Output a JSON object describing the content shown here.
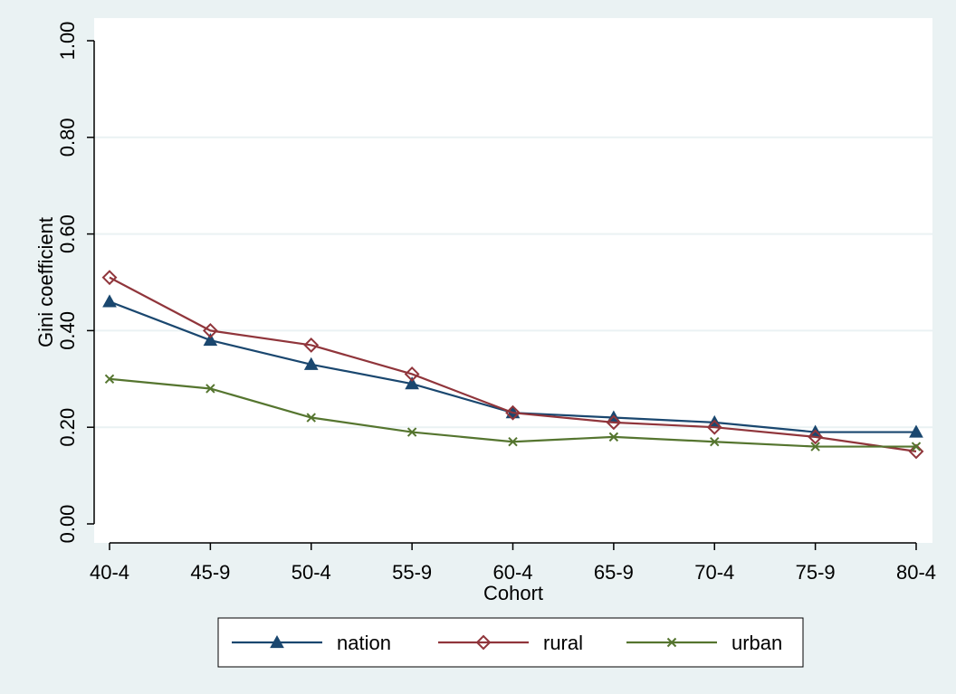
{
  "chart_data": {
    "type": "line",
    "title": "",
    "xlabel": "Cohort",
    "ylabel": "Gini coefficient",
    "categories": [
      "40-4",
      "45-9",
      "50-4",
      "55-9",
      "60-4",
      "65-9",
      "70-4",
      "75-9",
      "80-4"
    ],
    "ylim": [
      0,
      1
    ],
    "yticks": [
      0,
      0.2,
      0.4,
      0.6,
      0.8,
      1.0
    ],
    "ytick_labels": [
      "0.00",
      "0.20",
      "0.40",
      "0.60",
      "0.80",
      "1.00"
    ],
    "grid": true,
    "legend_position": "bottom",
    "series": [
      {
        "name": "nation",
        "color": "#1a476f",
        "marker": "triangle",
        "values": [
          0.46,
          0.38,
          0.33,
          0.29,
          0.23,
          0.22,
          0.21,
          0.19,
          0.19
        ]
      },
      {
        "name": "rural",
        "color": "#90353b",
        "marker": "diamond",
        "values": [
          0.51,
          0.4,
          0.37,
          0.31,
          0.23,
          0.21,
          0.2,
          0.18,
          0.15
        ]
      },
      {
        "name": "urban",
        "color": "#55752f",
        "marker": "x",
        "values": [
          0.3,
          0.28,
          0.22,
          0.19,
          0.17,
          0.18,
          0.17,
          0.16,
          0.16
        ]
      }
    ]
  },
  "colors": {
    "background": "#eaf2f3",
    "plot_background": "#ffffff",
    "grid": "#eaf2f3"
  }
}
